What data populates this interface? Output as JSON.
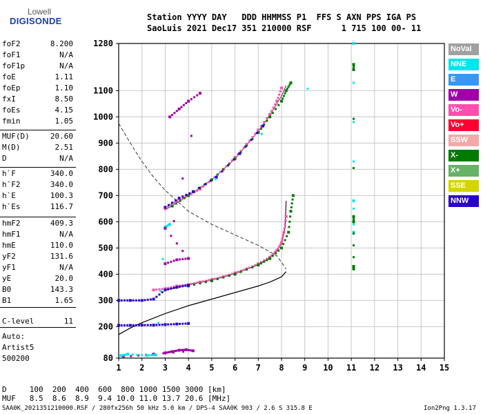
{
  "logo": {
    "line1": "Lowell",
    "line2": "DIGISONDE"
  },
  "header": {
    "line1": "Station YYYY DAY   DDD HHMMSS P1  FFS S AXN PPS IGA PS",
    "line2": "SaoLuis 2021 Dec17 351 210000 RSF      1 715 100 00- 11"
  },
  "params": [
    {
      "label": "foF2",
      "value": "8.200"
    },
    {
      "label": "foF1",
      "value": "N/A"
    },
    {
      "label": "foF1p",
      "value": "N/A"
    },
    {
      "label": "foE",
      "value": "1.11"
    },
    {
      "label": "foEp",
      "value": "1.10"
    },
    {
      "label": "fxI",
      "value": "8.50"
    },
    {
      "label": "foEs",
      "value": "4.15"
    },
    {
      "label": "fmin",
      "value": "1.05"
    },
    {
      "label": "MUF(D)",
      "value": "20.60"
    },
    {
      "label": "M(D)",
      "value": "2.51"
    },
    {
      "label": "D",
      "value": "N/A"
    },
    {
      "label": "h`F",
      "value": "340.0"
    },
    {
      "label": "h`F2",
      "value": "340.0"
    },
    {
      "label": "h`E",
      "value": "100.3"
    },
    {
      "label": "h`Es",
      "value": "116.7"
    },
    {
      "label": "hmF2",
      "value": "409.3"
    },
    {
      "label": "hmF1",
      "value": "N/A"
    },
    {
      "label": "hmE",
      "value": "110.0"
    },
    {
      "label": "yF2",
      "value": "131.6"
    },
    {
      "label": "yF1",
      "value": "N/A"
    },
    {
      "label": "yE",
      "value": "20.0"
    },
    {
      "label": "B0",
      "value": "143.3"
    },
    {
      "label": "B1",
      "value": "1.65"
    },
    {
      "label": "C-level",
      "value": "11"
    }
  ],
  "autoscaling": {
    "line1": "Auto:",
    "line2": "Artist5",
    "line3": "500200"
  },
  "muf_table": {
    "line1": "D     100  200  400  600  800 1000 1500 3000 [km]",
    "line2": "MUF   8.5  8.6  8.9  9.4 10.0 11.0 13.7 20.6 [MHz]"
  },
  "footer": {
    "file_info": "SAA0K_2021351210000.RSF / 280fx256h 50 kHz 5.0 km / DPS-4 SAA0K 903 / 2.6 S 315.8 E",
    "version": "Ion2Png 1.3.17"
  },
  "legend": [
    {
      "label": "NoVal",
      "color": "#a0a0a0"
    },
    {
      "label": "NNE",
      "color": "#00e5ee"
    },
    {
      "label": "E",
      "color": "#3399ff"
    },
    {
      "label": "W",
      "color": "#a000a8"
    },
    {
      "label": "Vo-",
      "color": "#ff4fae"
    },
    {
      "label": "Vo+",
      "color": "#ff0033"
    },
    {
      "label": "SSW",
      "color": "#f4a8a8"
    },
    {
      "label": "X-",
      "color": "#007a00"
    },
    {
      "label": "X+",
      "color": "#66b266"
    },
    {
      "label": "SSE",
      "color": "#d4d400"
    },
    {
      "label": "NNW",
      "color": "#2a00c8"
    }
  ],
  "chart_data": {
    "type": "scatter",
    "title": "",
    "xlabel": "",
    "ylabel": "",
    "xlim": [
      1,
      15
    ],
    "ylim": [
      80,
      1280
    ],
    "x_ticks": [
      1,
      2,
      3,
      4,
      5,
      6,
      7,
      8,
      9,
      10,
      11,
      12,
      13,
      14,
      15
    ],
    "y_ticks": [
      80,
      200,
      300,
      400,
      500,
      600,
      700,
      800,
      900,
      1000,
      1100,
      1280
    ],
    "grid": true,
    "series": [
      {
        "name": "Vo-",
        "color": "#ff4fae",
        "points": [
          [
            3.0,
            650
          ],
          [
            3.5,
            680
          ],
          [
            4.0,
            700
          ],
          [
            4.5,
            725
          ],
          [
            5.0,
            760
          ],
          [
            5.5,
            800
          ],
          [
            6.0,
            845
          ],
          [
            6.5,
            895
          ],
          [
            7.0,
            950
          ],
          [
            7.5,
            1010
          ],
          [
            7.8,
            1060
          ],
          [
            8.0,
            1110
          ]
        ]
      },
      {
        "name": "X-",
        "color": "#007a00",
        "points": [
          [
            3.3,
            660
          ],
          [
            4.0,
            700
          ],
          [
            5.0,
            760
          ],
          [
            6.0,
            840
          ],
          [
            7.0,
            940
          ],
          [
            7.5,
            1000
          ],
          [
            8.0,
            1060
          ],
          [
            8.2,
            1100
          ],
          [
            8.4,
            1130
          ]
        ]
      },
      {
        "name": "NNW",
        "color": "#2a00c8",
        "points": [
          [
            3.0,
            655
          ],
          [
            3.6,
            690
          ],
          [
            4.2,
            715
          ],
          [
            5.2,
            770
          ],
          [
            6.2,
            860
          ],
          [
            7.2,
            965
          ]
        ]
      },
      {
        "name": "Vo-",
        "color": "#ff4fae",
        "points": [
          [
            2.5,
            340
          ],
          [
            3.0,
            345
          ],
          [
            3.5,
            355
          ],
          [
            4.0,
            360
          ],
          [
            4.5,
            370
          ],
          [
            5.0,
            380
          ],
          [
            5.5,
            390
          ],
          [
            6.0,
            405
          ],
          [
            6.5,
            420
          ],
          [
            7.0,
            440
          ],
          [
            7.5,
            465
          ],
          [
            7.8,
            490
          ],
          [
            8.0,
            520
          ],
          [
            8.1,
            560
          ],
          [
            8.2,
            620
          ]
        ]
      },
      {
        "name": "X-",
        "color": "#007a00",
        "points": [
          [
            4.0,
            355
          ],
          [
            5.0,
            375
          ],
          [
            6.0,
            400
          ],
          [
            7.0,
            435
          ],
          [
            7.5,
            460
          ],
          [
            8.0,
            500
          ],
          [
            8.3,
            560
          ],
          [
            8.4,
            640
          ],
          [
            8.5,
            700
          ]
        ]
      },
      {
        "name": "NNW",
        "color": "#2a00c8",
        "points": [
          [
            1.0,
            300
          ],
          [
            1.5,
            300
          ],
          [
            2.0,
            300
          ],
          [
            2.5,
            305
          ],
          [
            3.0,
            340
          ],
          [
            3.5,
            350
          ],
          [
            4.0,
            358
          ]
        ]
      },
      {
        "name": "NNW",
        "color": "#2a00c8",
        "points": [
          [
            1.0,
            205
          ],
          [
            1.5,
            205
          ],
          [
            2.0,
            206
          ],
          [
            2.5,
            206
          ],
          [
            3.0,
            208
          ],
          [
            3.5,
            210
          ],
          [
            4.0,
            212
          ]
        ]
      },
      {
        "name": "W",
        "color": "#a000a8",
        "points": [
          [
            3.0,
            100
          ],
          [
            3.3,
            105
          ],
          [
            3.6,
            110
          ],
          [
            3.9,
            112
          ],
          [
            4.2,
            108
          ],
          [
            2.5,
            95
          ],
          [
            1.2,
            85
          ]
        ]
      },
      {
        "name": "NNE",
        "color": "#00e5ee",
        "points": [
          [
            1.1,
            90
          ],
          [
            1.4,
            95
          ],
          [
            2.2,
            90
          ],
          [
            2.6,
            92
          ],
          [
            3.0,
            580
          ],
          [
            3.2,
            590
          ],
          [
            11.1,
            1280
          ],
          [
            11.1,
            680
          ],
          [
            11.1,
            560
          ]
        ]
      },
      {
        "name": "X-",
        "color": "#007a00",
        "points": [
          [
            11.1,
            1200
          ],
          [
            11.1,
            1180
          ],
          [
            11.1,
            430
          ],
          [
            11.1,
            420
          ],
          [
            11.1,
            600
          ],
          [
            11.1,
            620
          ]
        ]
      },
      {
        "name": "W",
        "color": "#a000a8",
        "points": [
          [
            3.2,
            1000
          ],
          [
            3.6,
            1030
          ],
          [
            4.0,
            1060
          ],
          [
            4.5,
            1090
          ],
          [
            3.0,
            440
          ],
          [
            3.5,
            455
          ],
          [
            4.0,
            460
          ],
          [
            3.0,
            575
          ]
        ]
      }
    ],
    "profile_curve": [
      [
        8.2,
        410
      ],
      [
        8.0,
        390
      ],
      [
        7.5,
        370
      ],
      [
        7.0,
        355
      ],
      [
        6.0,
        330
      ],
      [
        5.0,
        305
      ],
      [
        4.0,
        280
      ],
      [
        3.0,
        250
      ],
      [
        2.0,
        215
      ],
      [
        1.5,
        195
      ],
      [
        1.0,
        170
      ]
    ],
    "trace_fit_ordinary": [
      [
        3.0,
        645
      ],
      [
        4.0,
        700
      ],
      [
        5.0,
        760
      ],
      [
        6.0,
        840
      ],
      [
        7.0,
        945
      ],
      [
        7.5,
        1005
      ],
      [
        8.0,
        1080
      ],
      [
        8.2,
        1120
      ]
    ],
    "trace_fit_F2_low": [
      [
        3.0,
        340
      ],
      [
        4.0,
        360
      ],
      [
        5.0,
        378
      ],
      [
        6.0,
        402
      ],
      [
        7.0,
        436
      ],
      [
        7.5,
        462
      ],
      [
        8.0,
        515
      ],
      [
        8.15,
        580
      ],
      [
        8.2,
        680
      ]
    ],
    "muf_curve_dashed": [
      [
        1.0,
        975
      ],
      [
        1.5,
        900
      ],
      [
        2.0,
        830
      ],
      [
        2.5,
        770
      ],
      [
        3.0,
        720
      ],
      [
        3.5,
        680
      ],
      [
        4.0,
        640
      ],
      [
        5.0,
        590
      ],
      [
        6.0,
        550
      ],
      [
        7.0,
        510
      ],
      [
        7.8,
        470
      ],
      [
        8.2,
        420
      ]
    ]
  }
}
